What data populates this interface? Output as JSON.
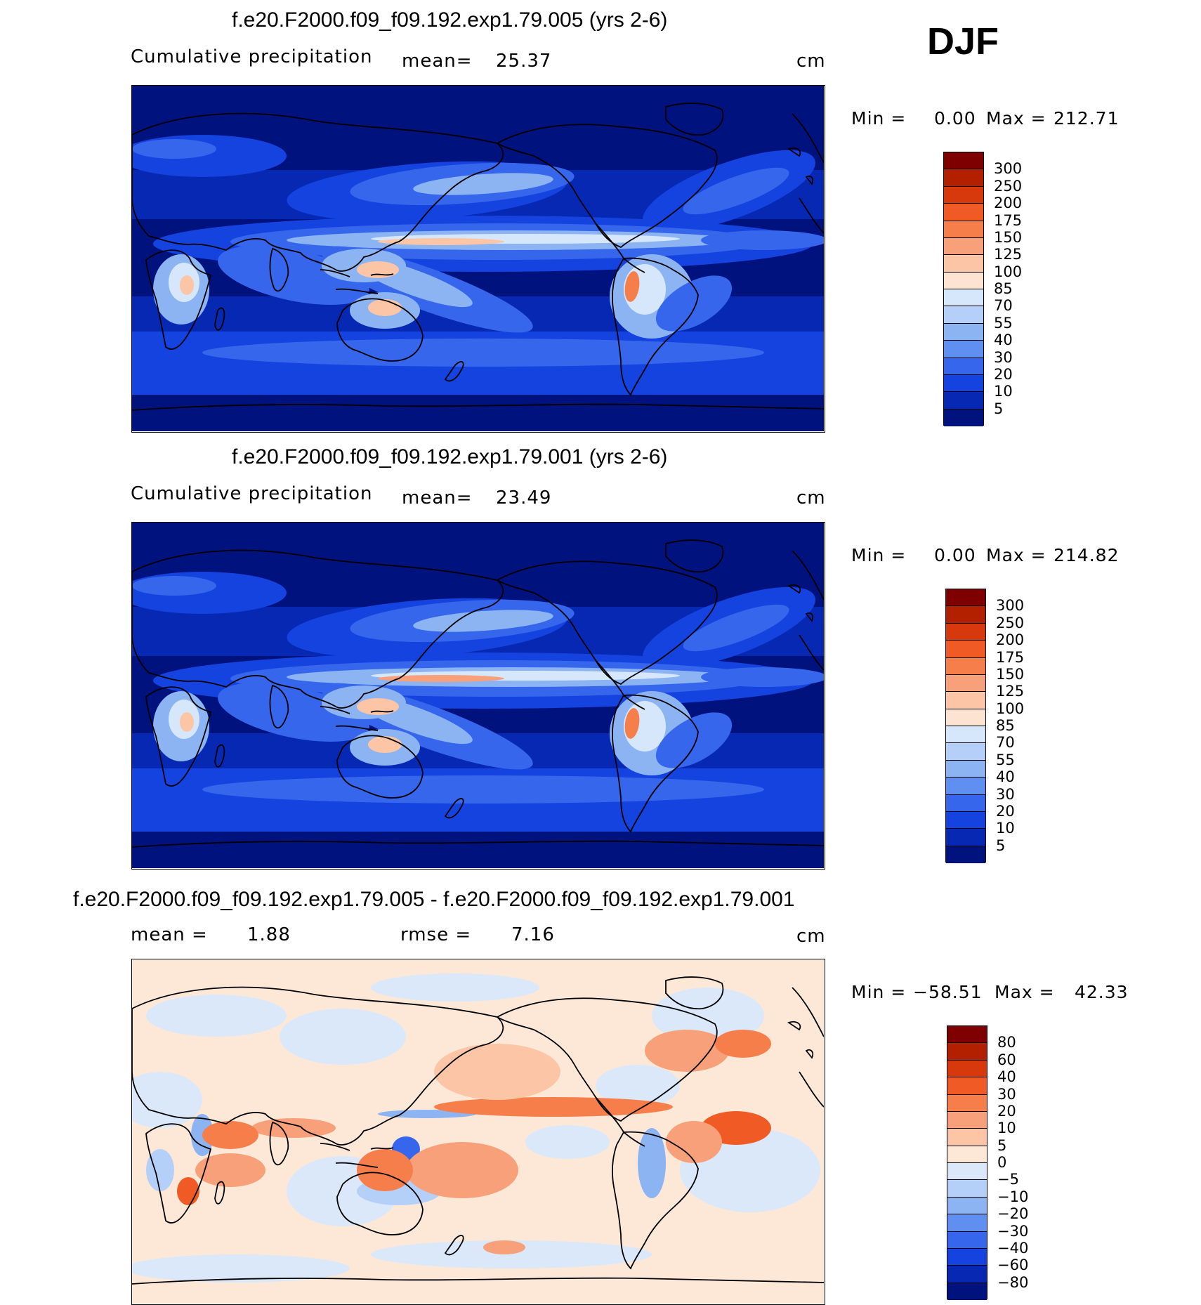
{
  "season": "DJF",
  "panels": [
    {
      "id": "panel1",
      "title": "f.e20.F2000.f09_f09.192.exp1.79.005 (yrs 2-6)",
      "variable_label": "Cumulative precipitation",
      "stat1_label": "mean=",
      "stat1_value": "25.37",
      "units": "cm",
      "min_label": "Min =",
      "min_value": "0.00",
      "max_label": "Max =",
      "max_value": "212.71",
      "colorbar": {
        "labels": [
          "300",
          "250",
          "200",
          "175",
          "150",
          "125",
          "100",
          "85",
          "70",
          "55",
          "40",
          "30",
          "20",
          "10",
          "5"
        ],
        "colors": [
          "#7f0000",
          "#b22000",
          "#d8390c",
          "#f05a24",
          "#f57e4b",
          "#f8a07a",
          "#fbc5a6",
          "#fde4d2",
          "#d6e7fb",
          "#b4cff8",
          "#8cb4f3",
          "#5f8ff0",
          "#3566ec",
          "#1443df",
          "#0728b3",
          "#00127e"
        ]
      },
      "map_style": "precip_a"
    },
    {
      "id": "panel2",
      "title": "f.e20.F2000.f09_f09.192.exp1.79.001 (yrs 2-6)",
      "variable_label": "Cumulative precipitation",
      "stat1_label": "mean=",
      "stat1_value": "23.49",
      "units": "cm",
      "min_label": "Min =",
      "min_value": "0.00",
      "max_label": "Max =",
      "max_value": "214.82",
      "colorbar": {
        "labels": [
          "300",
          "250",
          "200",
          "175",
          "150",
          "125",
          "100",
          "85",
          "70",
          "55",
          "40",
          "30",
          "20",
          "10",
          "5"
        ],
        "colors": [
          "#7f0000",
          "#b22000",
          "#d8390c",
          "#f05a24",
          "#f57e4b",
          "#f8a07a",
          "#fbc5a6",
          "#fde4d2",
          "#d6e7fb",
          "#b4cff8",
          "#8cb4f3",
          "#5f8ff0",
          "#3566ec",
          "#1443df",
          "#0728b3",
          "#00127e"
        ]
      },
      "map_style": "precip_b"
    },
    {
      "id": "panel3",
      "title": "f.e20.F2000.f09_f09.192.exp1.79.005 - f.e20.F2000.f09_f09.192.exp1.79.001",
      "stat1_label": "mean =",
      "stat1_value": "1.88",
      "stat2_label": "rmse =",
      "stat2_value": "7.16",
      "units": "cm",
      "min_label": "Min =",
      "min_value": "−58.51",
      "max_label": "Max =",
      "max_value": "42.33",
      "colorbar": {
        "labels": [
          "80",
          "60",
          "40",
          "30",
          "20",
          "10",
          "5",
          "0",
          "−5",
          "−10",
          "−20",
          "−30",
          "−40",
          "−60",
          "−80"
        ],
        "colors": [
          "#7f0000",
          "#b22000",
          "#d8390c",
          "#f05a24",
          "#f57e4b",
          "#f8a07a",
          "#fbc5a6",
          "#fde8d8",
          "#dbe8fa",
          "#b4cff8",
          "#8cb4f3",
          "#5f8ff0",
          "#3566ec",
          "#1443df",
          "#0728b3",
          "#00127e"
        ]
      },
      "map_style": "diff"
    }
  ]
}
